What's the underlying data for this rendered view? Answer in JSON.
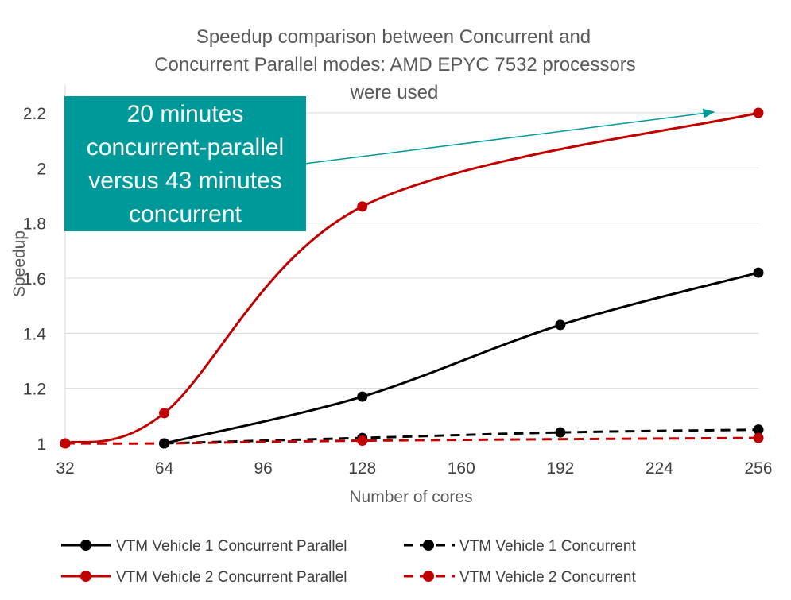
{
  "chart_data": {
    "type": "line",
    "title_lines": [
      "Speedup comparison between Concurrent and",
      "Concurrent Parallel modes: AMD EPYC 7532 processors",
      "were used"
    ],
    "xlabel": "Number of cores",
    "ylabel": "Speedup",
    "xlim": [
      32,
      256
    ],
    "ylim": [
      1,
      2.2
    ],
    "x_ticks": [
      32,
      64,
      96,
      128,
      160,
      192,
      224,
      256
    ],
    "y_ticks": [
      1,
      1.2,
      1.4,
      1.6,
      1.8,
      2,
      2.2
    ],
    "y_tick_labels": [
      "1",
      "1.2",
      "1.4",
      "1.6",
      "1.8",
      "2",
      "2.2"
    ],
    "grid": "horizontal",
    "legend_position": "bottom",
    "series": [
      {
        "name": "VTM Vehicle 1 Concurrent Parallel",
        "color": "#000000",
        "dashed": false,
        "x": [
          64,
          128,
          192,
          256
        ],
        "y": [
          1.0,
          1.17,
          1.43,
          1.62
        ]
      },
      {
        "name": "VTM Vehicle 1 Concurrent",
        "color": "#000000",
        "dashed": true,
        "x": [
          64,
          128,
          192,
          256
        ],
        "y": [
          1.0,
          1.02,
          1.04,
          1.05
        ]
      },
      {
        "name": "VTM Vehicle 2 Concurrent Parallel",
        "color": "#c00000",
        "dashed": false,
        "x": [
          32,
          64,
          128,
          256
        ],
        "y": [
          1.0,
          1.11,
          1.86,
          2.2
        ]
      },
      {
        "name": "VTM Vehicle 2 Concurrent",
        "color": "#c00000",
        "dashed": true,
        "x": [
          32,
          64,
          128,
          256
        ],
        "y": [
          1.0,
          1.0,
          1.01,
          1.02
        ]
      }
    ],
    "annotation": {
      "lines": [
        "20 minutes",
        "concurrent-parallel",
        "versus 43 minutes",
        "concurrent"
      ],
      "box_color": "#009999",
      "arrow_color": "#009999",
      "points_to_x": 256,
      "points_to_y": 2.2
    }
  }
}
